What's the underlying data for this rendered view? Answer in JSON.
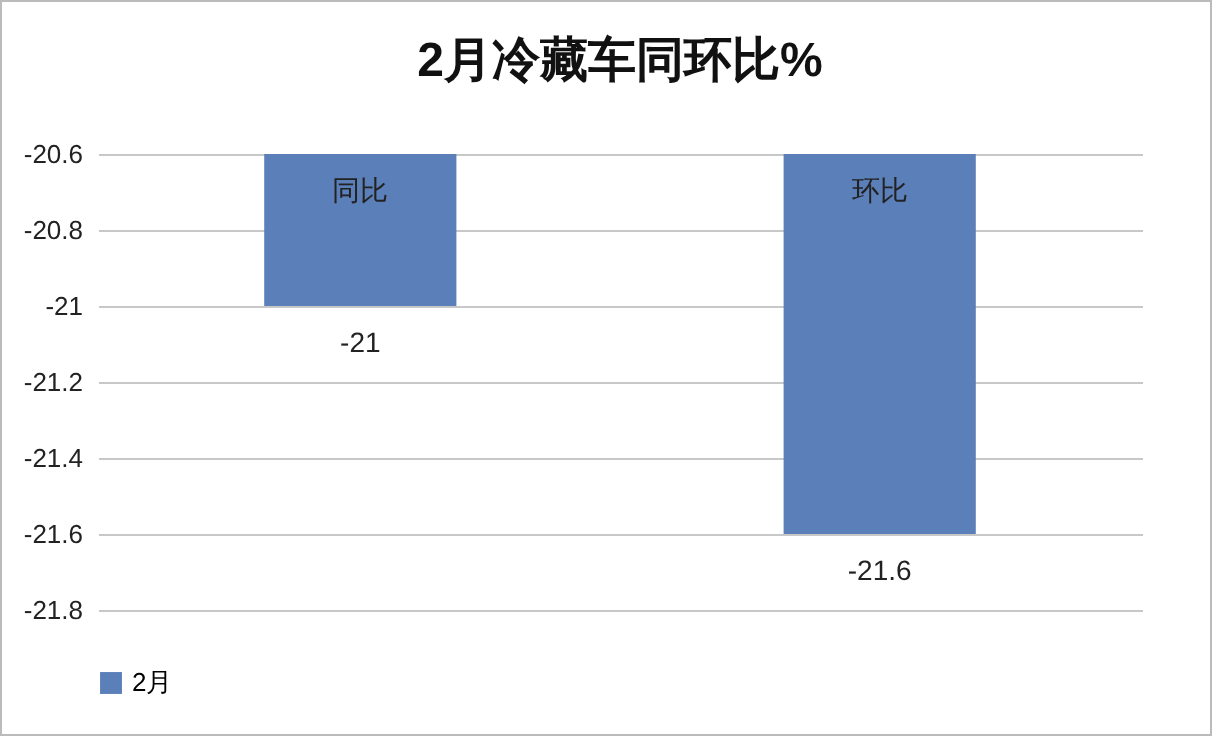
{
  "chart_data": {
    "type": "bar",
    "title": "2月冷藏车同环比%",
    "categories": [
      "同比",
      "环比"
    ],
    "series": [
      {
        "name": "2月",
        "color": "#5a7fb9",
        "values": [
          -21,
          -21.6
        ]
      }
    ],
    "ylim": [
      -21.8,
      -20.6
    ],
    "yticks": [
      -20.6,
      -20.8,
      -21,
      -21.2,
      -21.4,
      -21.6,
      -21.8
    ],
    "grid": "y",
    "legend": "bottom",
    "data_labels": true
  }
}
